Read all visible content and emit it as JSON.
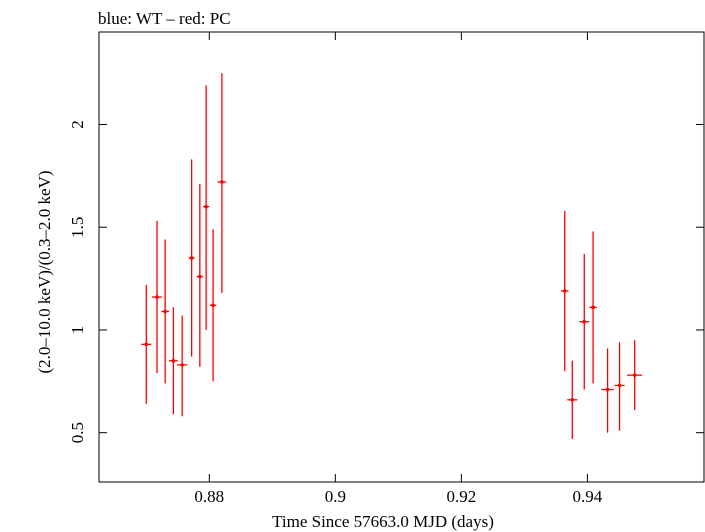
{
  "chart_data": {
    "type": "scatter",
    "title": "blue: WT – red: PC",
    "xlabel": "Time Since 57663.0 MJD (days)",
    "ylabel": "(2.0–10.0 keV)/(0.3–2.0 keV)",
    "xlim": [
      0.8625,
      0.9585
    ],
    "ylim": [
      0.26,
      2.45
    ],
    "xticks": [
      0.88,
      0.9,
      0.92,
      0.94
    ],
    "xtick_labels": [
      "0.88",
      "0.9",
      "0.92",
      "0.94"
    ],
    "yticks": [
      0.5,
      1,
      1.5,
      2
    ],
    "ytick_labels": [
      "0.5",
      "1",
      "1.5",
      "2"
    ],
    "grid": false,
    "series": [
      {
        "color": "#ff0000",
        "points": [
          {
            "x": 0.87,
            "y": 0.93,
            "xerr": 0.0008,
            "ylo": 0.64,
            "yhi": 1.22
          },
          {
            "x": 0.8717,
            "y": 1.16,
            "xerr": 0.0008,
            "ylo": 0.79,
            "yhi": 1.53
          },
          {
            "x": 0.873,
            "y": 1.09,
            "xerr": 0.0006,
            "ylo": 0.74,
            "yhi": 1.44
          },
          {
            "x": 0.8743,
            "y": 0.85,
            "xerr": 0.0007,
            "ylo": 0.59,
            "yhi": 1.11
          },
          {
            "x": 0.8757,
            "y": 0.83,
            "xerr": 0.0008,
            "ylo": 0.58,
            "yhi": 1.07
          },
          {
            "x": 0.8772,
            "y": 1.35,
            "xerr": 0.0005,
            "ylo": 0.87,
            "yhi": 1.83
          },
          {
            "x": 0.8785,
            "y": 1.26,
            "xerr": 0.0005,
            "ylo": 0.82,
            "yhi": 1.71
          },
          {
            "x": 0.8795,
            "y": 1.6,
            "xerr": 0.0005,
            "ylo": 1.0,
            "yhi": 2.19
          },
          {
            "x": 0.8806,
            "y": 1.12,
            "xerr": 0.0005,
            "ylo": 0.75,
            "yhi": 1.49
          },
          {
            "x": 0.882,
            "y": 1.72,
            "xerr": 0.0007,
            "ylo": 1.18,
            "yhi": 2.25
          },
          {
            "x": 0.9364,
            "y": 1.19,
            "xerr": 0.0006,
            "ylo": 0.8,
            "yhi": 1.58
          },
          {
            "x": 0.9376,
            "y": 0.66,
            "xerr": 0.0008,
            "ylo": 0.47,
            "yhi": 0.85
          },
          {
            "x": 0.9395,
            "y": 1.04,
            "xerr": 0.0008,
            "ylo": 0.71,
            "yhi": 1.37
          },
          {
            "x": 0.9409,
            "y": 1.11,
            "xerr": 0.0006,
            "ylo": 0.74,
            "yhi": 1.48
          },
          {
            "x": 0.9432,
            "y": 0.71,
            "xerr": 0.001,
            "ylo": 0.5,
            "yhi": 0.91
          },
          {
            "x": 0.9451,
            "y": 0.73,
            "xerr": 0.0008,
            "ylo": 0.51,
            "yhi": 0.94
          },
          {
            "x": 0.9475,
            "y": 0.78,
            "xerr": 0.0012,
            "ylo": 0.61,
            "yhi": 0.95
          }
        ]
      }
    ]
  }
}
